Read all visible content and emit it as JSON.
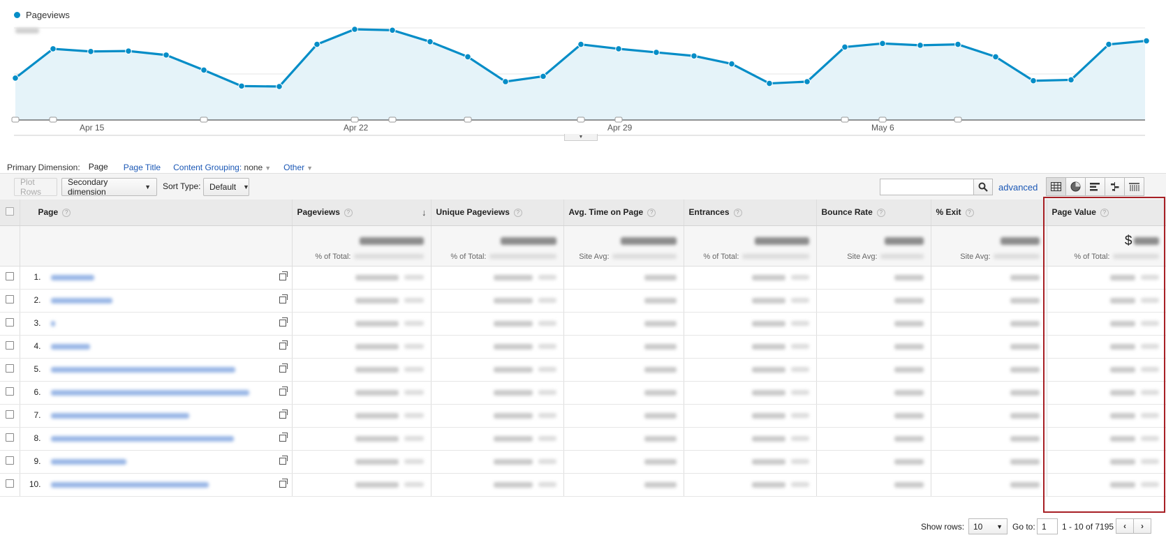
{
  "chart": {
    "legend_label": "Pageviews",
    "series_color": "#058dc7",
    "fill_color": "#e5f3f9",
    "y_tick_labels_blurred": true,
    "x_labels": [
      "Apr 15",
      "Apr 22",
      "Apr 29",
      "May 6"
    ],
    "points": [
      0.55,
      0.22,
      0.25,
      0.245,
      0.29,
      0.46,
      0.64,
      0.645,
      0.17,
      0.0,
      0.01,
      0.14,
      0.31,
      0.59,
      0.53,
      0.17,
      0.22,
      0.26,
      0.3,
      0.39,
      0.61,
      0.59,
      0.2,
      0.16,
      0.18,
      0.17,
      0.31,
      0.58,
      0.57,
      0.17,
      0.13
    ],
    "annotation_marker_indexes": [
      0,
      1,
      5,
      9,
      10,
      12,
      15,
      16,
      22,
      23,
      25
    ]
  },
  "primary_dimension": {
    "label": "Primary Dimension:",
    "active": "Page",
    "options": [
      "Page Title",
      "Content Grouping:",
      "Other"
    ],
    "content_grouping_value": "none"
  },
  "toolbar": {
    "plot_rows": "Plot Rows",
    "secondary_dimension": "Secondary dimension",
    "sort_type_label": "Sort Type:",
    "sort_type_value": "Default",
    "search_placeholder": "",
    "advanced": "advanced"
  },
  "table": {
    "columns": [
      "Page",
      "Pageviews",
      "Unique Pageviews",
      "Avg. Time on Page",
      "Entrances",
      "Bounce Rate",
      "% Exit",
      "Page Value"
    ],
    "summary_sublabels": {
      "pageviews": "% of Total:",
      "unique": "% of Total:",
      "avg_time": "Site Avg:",
      "entrances": "% of Total:",
      "bounce": "Site Avg:",
      "exit": "Site Avg:",
      "page_value": "% of Total:"
    },
    "page_value_currency": "$",
    "row_numbers": [
      "1.",
      "2.",
      "3.",
      "4.",
      "5.",
      "6.",
      "7.",
      "8.",
      "9.",
      "10."
    ],
    "row_link_widths": [
      62,
      88,
      6,
      56,
      264,
      284,
      198,
      262,
      108,
      226
    ],
    "values_blurred": true
  },
  "pagination": {
    "show_rows_label": "Show rows:",
    "show_rows_value": "10",
    "goto_label": "Go to:",
    "goto_value": "1",
    "range_text": "1 - 10 of 7195"
  },
  "highlight_color": "#a71f24"
}
